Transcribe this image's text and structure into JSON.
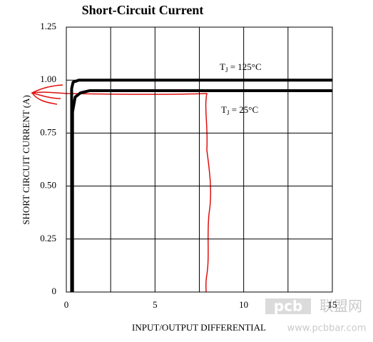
{
  "chart_data": {
    "type": "line",
    "title": "Short-Circuit Current",
    "xlabel": "INPUT/OUTPUT DIFFERENTIAL",
    "ylabel": "SHORT CIRCUIT CURRENT (A)",
    "xlim": [
      0,
      15
    ],
    "ylim": [
      0,
      1.25
    ],
    "xticks": [
      0,
      5,
      10,
      15
    ],
    "xgrid": [
      0,
      2.5,
      5,
      7.5,
      10,
      12.5,
      15
    ],
    "yticks": [
      0,
      0.25,
      {
        "value": 0.5,
        "label": "0.50"
      },
      0.75,
      {
        "value": 1,
        "label": "1.00"
      },
      1.25
    ],
    "grid": true,
    "series": [
      {
        "name": "TJ = 125°C",
        "color": "#000000",
        "x": [
          0.3,
          0.3,
          0.38,
          0.7,
          15
        ],
        "values": [
          0,
          0.96,
          0.99,
          1.0,
          1.0
        ]
      },
      {
        "name": "TJ = 25°C",
        "color": "#000000",
        "x": [
          0.35,
          0.35,
          0.5,
          0.8,
          1.3,
          15
        ],
        "values": [
          0,
          0.85,
          0.92,
          0.94,
          0.95,
          0.95
        ]
      }
    ],
    "watermark": {
      "logo": "pcb",
      "site": "联盟网",
      "url": "www.pcbbar.com"
    }
  }
}
